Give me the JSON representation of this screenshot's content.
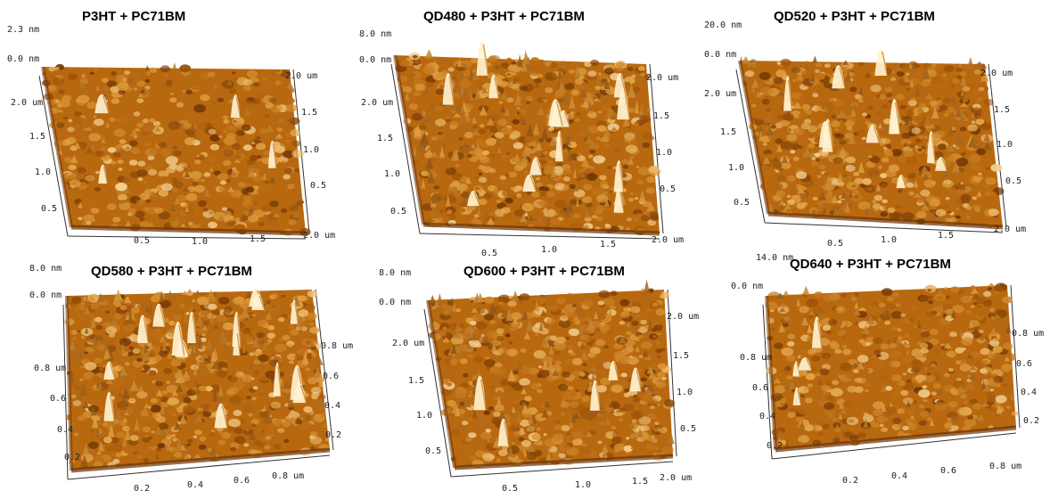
{
  "panels": [
    {
      "title": "P3HT + PC71BM",
      "z_max": "2.3 nm",
      "z_min": "0.0 nm",
      "left_axis": [
        "2.0 um",
        "1.5",
        "1.0",
        "0.5"
      ],
      "right_axis": [
        "2.0 um",
        "1.5",
        "1.0",
        "0.5"
      ],
      "bottom_axis": [
        "0.5",
        "1.0",
        "1.5",
        "2.0 um"
      ]
    },
    {
      "title": "QD480 + P3HT + PC71BM",
      "z_max": "8.0 nm",
      "z_min": "0.0 nm",
      "left_axis": [
        "2.0 um",
        "1.5",
        "1.0",
        "0.5"
      ],
      "right_axis": [
        "2.0 um",
        "1.5",
        "1.0",
        "0.5"
      ],
      "bottom_axis": [
        "0.5",
        "1.0",
        "1.5",
        "2.0 um"
      ]
    },
    {
      "title": "QD520 + P3HT + PC71BM",
      "z_max": "20.0 nm",
      "z_min": "0.0 nm",
      "left_axis": [
        "2.0 um",
        "1.5",
        "1.0",
        "0.5"
      ],
      "right_axis": [
        "2.0 um",
        "1.5",
        "1.0",
        "0.5"
      ],
      "bottom_axis": [
        "0.5",
        "1.0",
        "1.5",
        "2.0 um"
      ]
    },
    {
      "title": "QD580 + P3HT + PC71BM",
      "z_max": "8.0 nm",
      "z_min": "0.0 nm",
      "left_axis": [
        "0.8 um",
        "0.6",
        "0.4",
        "0.2"
      ],
      "right_axis": [
        "0.8 um",
        "0.6",
        "0.4",
        "0.2"
      ],
      "bottom_axis": [
        "0.2",
        "0.4",
        "0.6",
        "0.8 um"
      ]
    },
    {
      "title": "QD600 + P3HT + PC71BM",
      "z_max": "8.0 nm",
      "z_min": "0.0 nm",
      "left_axis": [
        "2.0 um",
        "1.5",
        "1.0",
        "0.5"
      ],
      "right_axis": [
        "2.0 um",
        "1.5",
        "1.0",
        "0.5"
      ],
      "bottom_axis": [
        "0.5",
        "1.0",
        "1.5",
        "2.0 um"
      ]
    },
    {
      "title": "QD640 + P3HT + PC71BM",
      "z_max": "14.0 nm",
      "z_min": "0.0 nm",
      "left_axis": [
        "0.8 um",
        "0.6",
        "0.4",
        "0.2"
      ],
      "right_axis": [
        "0.8 um",
        "0.6",
        "0.4",
        "0.2"
      ],
      "bottom_axis": [
        "0.2",
        "0.4",
        "0.6",
        "0.8 um"
      ]
    }
  ],
  "colors": {
    "surface_dark": "#6b3204",
    "surface_mid": "#b8680f",
    "surface_light": "#e0a040",
    "peak": "#fff2cf"
  }
}
